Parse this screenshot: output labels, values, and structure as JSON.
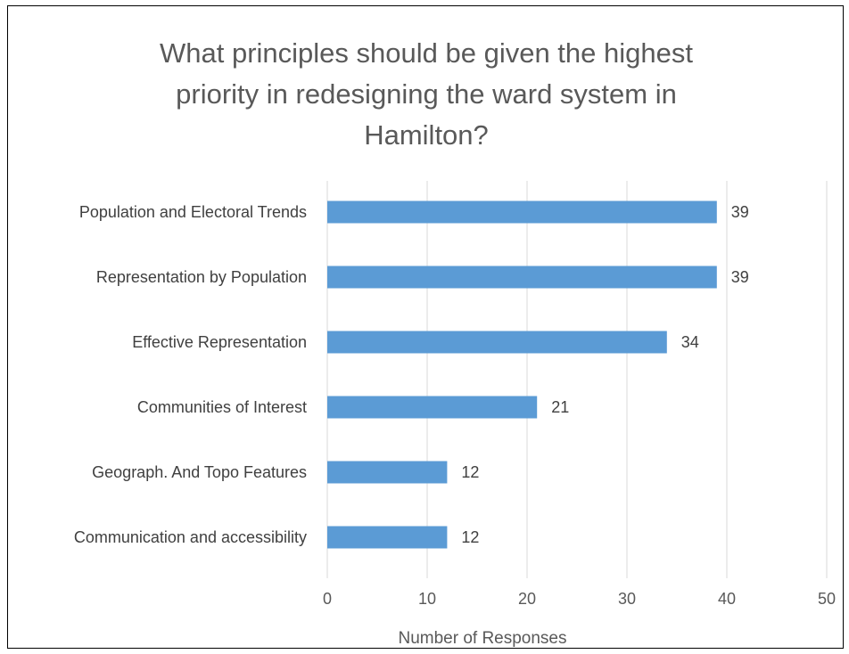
{
  "chart_data": {
    "type": "bar",
    "orientation": "horizontal",
    "title": "What principles should be given the highest\npriority in redesigning the ward system in\nHamilton?",
    "categories": [
      "Population and Electoral Trends",
      "Representation by Population",
      "Effective Representation",
      "Communities of Interest",
      "Geograph. And Topo Features",
      "Communication and accessibility"
    ],
    "values": [
      39,
      39,
      34,
      21,
      12,
      12
    ],
    "data_labels": [
      "39",
      "39",
      "34",
      "21",
      "12",
      "12"
    ],
    "xlabel": "Number of Responses",
    "ylabel": "",
    "xlim": [
      0,
      50
    ],
    "x_ticks": [
      0,
      10,
      20,
      30,
      40,
      50
    ],
    "x_tick_labels": [
      "0",
      "10",
      "20",
      "30",
      "40",
      "50"
    ],
    "grid": true,
    "legend": false,
    "bar_color": "#5B9BD5",
    "grid_color": "#D9D9D9"
  }
}
